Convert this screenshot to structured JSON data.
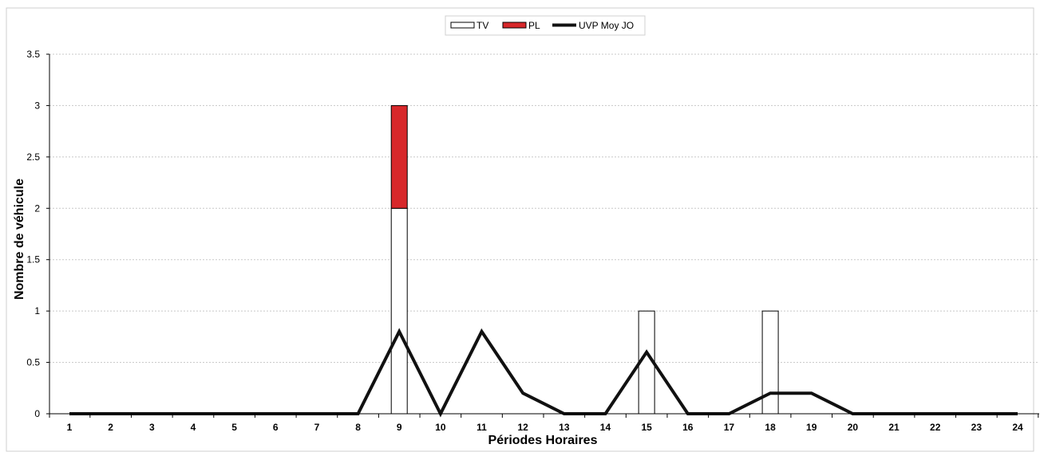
{
  "chart_data": {
    "type": "bar",
    "title": "",
    "xlabel": "Périodes Horaires",
    "ylabel": "Nombre de véhicule",
    "ylim": [
      0,
      3.5
    ],
    "yticks": [
      "0",
      "0.5",
      "1",
      "1.5",
      "2",
      "2.5",
      "3",
      "3.5"
    ],
    "categories": [
      "1",
      "2",
      "3",
      "4",
      "5",
      "6",
      "7",
      "8",
      "9",
      "10",
      "11",
      "12",
      "13",
      "14",
      "15",
      "16",
      "17",
      "18",
      "19",
      "20",
      "21",
      "22",
      "23",
      "24"
    ],
    "stacked": true,
    "grid": true,
    "legend_position": "top-center",
    "series": [
      {
        "name": "TV",
        "kind": "bar",
        "color": "#ffffff",
        "stroke": "#000000",
        "values": [
          0,
          0,
          0,
          0,
          0,
          0,
          0,
          0,
          2,
          0,
          0,
          0,
          0,
          0,
          1,
          0,
          0,
          1,
          0,
          0,
          0,
          0,
          0,
          0
        ]
      },
      {
        "name": "PL",
        "kind": "bar",
        "color": "#d7282b",
        "stroke": "#000000",
        "values": [
          0,
          0,
          0,
          0,
          0,
          0,
          0,
          0,
          1,
          0,
          0,
          0,
          0,
          0,
          0,
          0,
          0,
          0,
          0,
          0,
          0,
          0,
          0,
          0
        ]
      },
      {
        "name": "UVP Moy JO",
        "kind": "line",
        "color": "#111111",
        "values": [
          0,
          0,
          0,
          0,
          0,
          0,
          0,
          0,
          0.8,
          0,
          0.8,
          0.2,
          0,
          0,
          0.6,
          0,
          0,
          0.2,
          0.2,
          0,
          0,
          0,
          0,
          0
        ]
      }
    ]
  }
}
